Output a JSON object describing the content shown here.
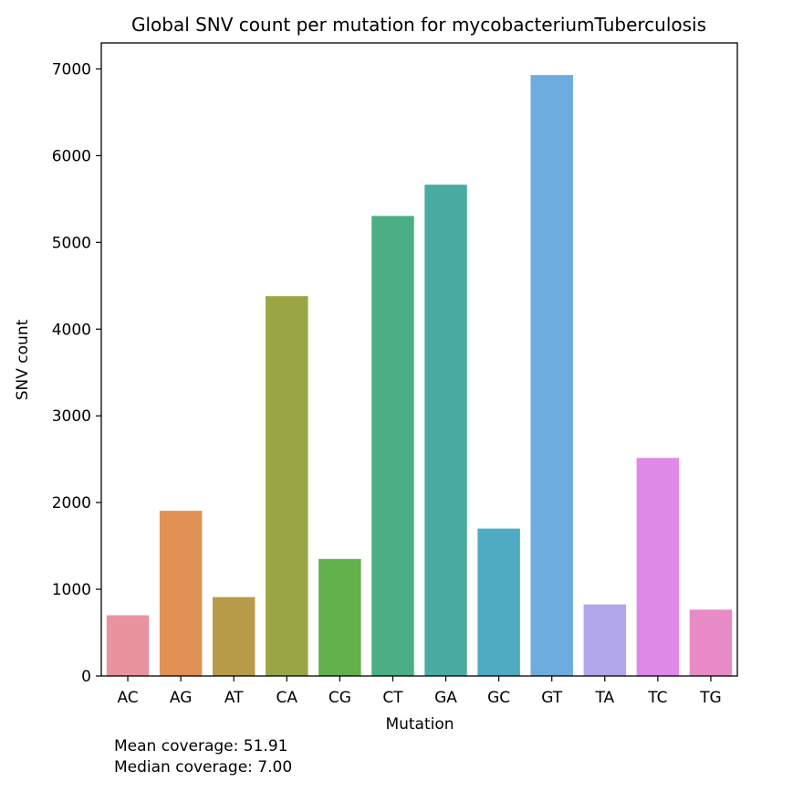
{
  "chart_data": {
    "type": "bar",
    "title": "Global SNV count per mutation for mycobacteriumTuberculosis",
    "xlabel": "Mutation",
    "ylabel": "SNV count",
    "categories": [
      "AC",
      "AG",
      "AT",
      "CA",
      "CG",
      "CT",
      "GA",
      "GC",
      "GT",
      "TA",
      "TC",
      "TG"
    ],
    "values": [
      700,
      1905,
      910,
      4380,
      1350,
      5305,
      5665,
      1700,
      6930,
      825,
      2515,
      765
    ],
    "colors": [
      "#e8939e",
      "#e09153",
      "#b89b48",
      "#9aa546",
      "#62b14b",
      "#4aaf84",
      "#4aaba3",
      "#4eabc1",
      "#6cacdf",
      "#b3a7ec",
      "#df8ae8",
      "#e78ac5"
    ],
    "ylim": [
      0,
      7300
    ],
    "yticks": [
      0,
      1000,
      2000,
      3000,
      4000,
      5000,
      6000,
      7000
    ],
    "grid": false,
    "legend": "none"
  },
  "notes": {
    "mean_coverage": "Mean coverage: 51.91",
    "median_coverage": "Median coverage: 7.00"
  }
}
